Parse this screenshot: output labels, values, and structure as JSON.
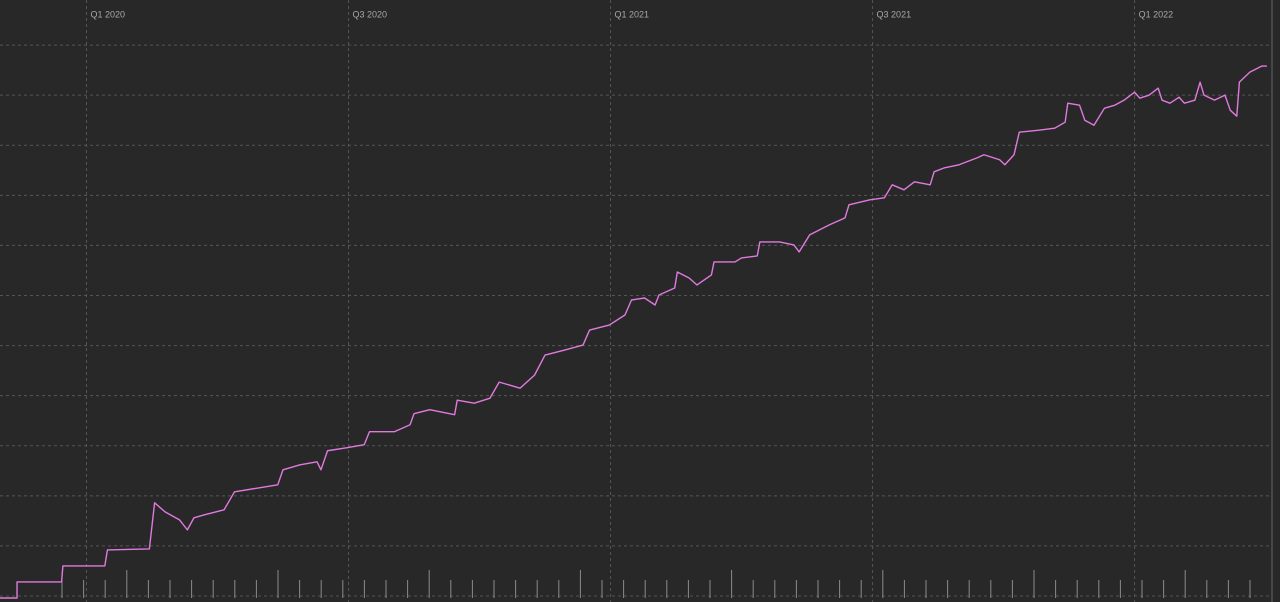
{
  "chart_data": {
    "type": "line",
    "x": [
      -0.66,
      -0.53,
      -0.53,
      -0.19,
      -0.18,
      0.14,
      0.16,
      0.48,
      0.52,
      0.6,
      0.71,
      0.77,
      0.82,
      0.9,
      1.05,
      1.13,
      1.32,
      1.46,
      1.5,
      1.63,
      1.76,
      1.79,
      1.84,
      1.99,
      2.12,
      2.16,
      2.35,
      2.47,
      2.5,
      2.62,
      2.81,
      2.83,
      2.96,
      3.08,
      3.15,
      3.31,
      3.42,
      3.5,
      3.65,
      3.79,
      3.84,
      3.99,
      4.11,
      4.16,
      4.26,
      4.34,
      4.37,
      4.49,
      4.51,
      4.6,
      4.66,
      4.77,
      4.79,
      4.95,
      5.0,
      5.12,
      5.14,
      5.29,
      5.4,
      5.44,
      5.52,
      5.67,
      5.79,
      5.82,
      5.98,
      6.09,
      6.15,
      6.24,
      6.32,
      6.44,
      6.47,
      6.55,
      6.66,
      6.8,
      6.85,
      6.97,
      7.01,
      7.08,
      7.12,
      7.27,
      7.39,
      7.47,
      7.49,
      7.58,
      7.62,
      7.69,
      7.77,
      7.85,
      7.92,
      8.0,
      8.04,
      8.11,
      8.18,
      8.21,
      8.27,
      8.34,
      8.38,
      8.46,
      8.5,
      8.53,
      8.61,
      8.69,
      8.73,
      8.78,
      8.8,
      8.88,
      8.94,
      8.97,
      9.01
    ],
    "series": [
      {
        "color": "#e07ade",
        "values": [
          -0.04,
          -0.04,
          0.28,
          0.28,
          0.6,
          0.6,
          0.92,
          0.94,
          1.86,
          1.68,
          1.52,
          1.32,
          1.56,
          1.62,
          1.72,
          2.08,
          2.16,
          2.22,
          2.52,
          2.62,
          2.68,
          2.52,
          2.9,
          2.96,
          3.02,
          3.28,
          3.28,
          3.42,
          3.64,
          3.72,
          3.62,
          3.91,
          3.85,
          3.95,
          4.27,
          4.15,
          4.41,
          4.81,
          4.91,
          5.01,
          5.31,
          5.41,
          5.61,
          5.91,
          5.95,
          5.81,
          6.01,
          6.15,
          6.47,
          6.35,
          6.21,
          6.41,
          6.67,
          6.67,
          6.75,
          6.79,
          7.07,
          7.07,
          7.01,
          6.87,
          7.21,
          7.41,
          7.55,
          7.81,
          7.91,
          7.95,
          8.21,
          8.11,
          8.27,
          8.21,
          8.47,
          8.55,
          8.61,
          8.75,
          8.81,
          8.71,
          8.61,
          8.81,
          9.26,
          9.3,
          9.34,
          9.46,
          9.84,
          9.8,
          9.5,
          9.4,
          9.74,
          9.8,
          9.9,
          10.06,
          9.94,
          10.0,
          10.14,
          9.9,
          9.84,
          9.96,
          9.84,
          9.9,
          10.26,
          10.0,
          9.9,
          10.0,
          9.7,
          9.58,
          10.26,
          10.46,
          10.54,
          10.58,
          10.58
        ]
      }
    ],
    "xlim": [
      -0.66,
      9.11
    ],
    "xticks": [
      {
        "value": 0,
        "label": "Q1 2020"
      },
      {
        "value": 2,
        "label": "Q3 2020"
      },
      {
        "value": 4,
        "label": "Q1 2021"
      },
      {
        "value": 6,
        "label": "Q3 2021"
      },
      {
        "value": 8,
        "label": "Q1 2022"
      }
    ],
    "ylim": [
      -0.12,
      11.9
    ],
    "yticks": [
      0,
      1,
      2,
      3,
      4,
      5,
      6,
      7,
      8,
      9,
      10,
      11
    ],
    "grid": true
  }
}
